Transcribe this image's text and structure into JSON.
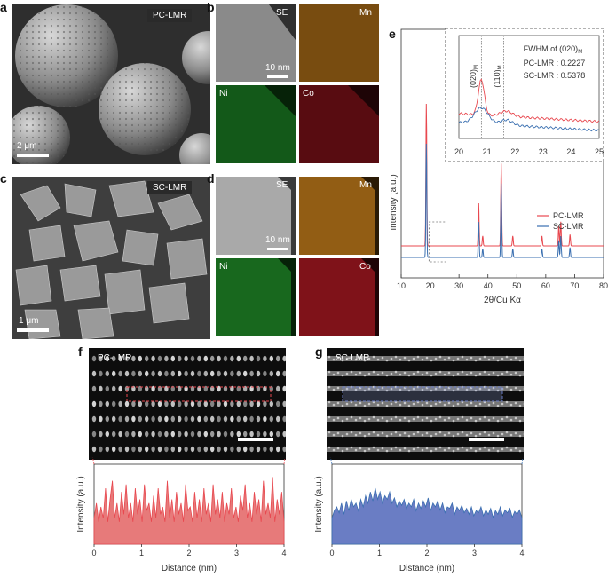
{
  "panels": {
    "a": {
      "letter": "a",
      "tag": "PC-LMR",
      "scale": "2 μm"
    },
    "b": {
      "letter": "b",
      "scale": "10 nm",
      "maps": [
        "SE",
        "Mn",
        "Ni",
        "Co"
      ]
    },
    "c": {
      "letter": "c",
      "tag": "SC-LMR",
      "scale": "1 μm"
    },
    "d": {
      "letter": "d",
      "scale": "10 nm",
      "maps": [
        "SE",
        "Mn",
        "Ni",
        "Co"
      ]
    },
    "e": {
      "letter": "e"
    },
    "f": {
      "letter": "f",
      "tag": "PC-LMR"
    },
    "g": {
      "letter": "g",
      "tag": "SC-LMR"
    }
  },
  "colors": {
    "pc": "#e8484f",
    "sc": "#3a6fb0",
    "pc_fill": "#e77a7a",
    "sc_fill": "#6a7dc4",
    "mn": "#d88a1e",
    "ni": "#2fbf3a",
    "co": "#e0202c"
  },
  "chart_data": [
    {
      "type": "line",
      "panel": "e",
      "xlabel": "2θ/Cu Kα",
      "ylabel": "Intensity (a.u.)",
      "xlim": [
        10,
        80
      ],
      "xticks": [
        10,
        20,
        30,
        40,
        50,
        60,
        70,
        80
      ],
      "series": [
        {
          "name": "PC-LMR",
          "color": "#e8484f",
          "peaks": [
            [
              18.7,
              1.0
            ],
            [
              36.8,
              0.3
            ],
            [
              38.2,
              0.07
            ],
            [
              44.6,
              0.58
            ],
            [
              48.6,
              0.07
            ],
            [
              58.7,
              0.07
            ],
            [
              64.5,
              0.14
            ],
            [
              65.2,
              0.17
            ],
            [
              68.4,
              0.08
            ]
          ]
        },
        {
          "name": "SC-LMR",
          "color": "#3a6fb0",
          "peaks": [
            [
              18.7,
              0.8
            ],
            [
              36.8,
              0.25
            ],
            [
              38.2,
              0.06
            ],
            [
              44.6,
              0.52
            ],
            [
              48.6,
              0.06
            ],
            [
              58.7,
              0.06
            ],
            [
              64.5,
              0.12
            ],
            [
              65.2,
              0.15
            ],
            [
              68.4,
              0.07
            ]
          ]
        }
      ],
      "inset": {
        "xlim": [
          20,
          25
        ],
        "xticks": [
          20,
          21,
          22,
          23,
          24,
          25
        ],
        "labels": [
          "(020)",
          "(110)"
        ],
        "label_subscript": "M",
        "fwhm_title": "FWHM of (020)",
        "fwhm_subscript": "M",
        "fwhm_values": [
          "PC-LMR : 0.2227",
          "SC-LMR : 0.5378"
        ]
      }
    },
    {
      "type": "area",
      "panel": "f",
      "xlabel": "Distance (nm)",
      "ylabel": "Intensity (a.u.)",
      "xlim": [
        0,
        4
      ],
      "xticks": [
        0,
        1,
        2,
        3,
        4
      ],
      "values": [
        0.35,
        0.55,
        0.3,
        0.5,
        0.35,
        0.75,
        0.3,
        0.6,
        0.85,
        0.35,
        0.55,
        0.3,
        0.7,
        0.4,
        0.8,
        0.35,
        0.55,
        0.3,
        0.75,
        0.4,
        0.6,
        0.3,
        0.8,
        0.45,
        0.55,
        0.3,
        0.65,
        0.35,
        0.75,
        0.4,
        0.5,
        0.3,
        0.85,
        0.35,
        0.6,
        0.3,
        0.7,
        0.4,
        0.55,
        0.3,
        0.8,
        0.45,
        0.5,
        0.3,
        0.7,
        0.35,
        0.6,
        0.3,
        0.75,
        0.4,
        0.55,
        0.3,
        0.8,
        0.4,
        0.6,
        0.35,
        0.7,
        0.3,
        0.55,
        0.4,
        0.75,
        0.35,
        0.5,
        0.3,
        0.65,
        0.45,
        0.8,
        0.35,
        0.55,
        0.3,
        0.7,
        0.4,
        0.6,
        0.3,
        0.85,
        0.4,
        0.55,
        0.35,
        0.9,
        0.3,
        0.6,
        0.4,
        0.7,
        0.3
      ]
    },
    {
      "type": "area",
      "panel": "g",
      "xlabel": "Distance (nm)",
      "ylabel": "Intensity (a.u.)",
      "xlim": [
        0,
        4
      ],
      "xticks": [
        0,
        1,
        2,
        3,
        4
      ],
      "values": [
        0.35,
        0.45,
        0.5,
        0.42,
        0.55,
        0.4,
        0.58,
        0.45,
        0.6,
        0.5,
        0.55,
        0.45,
        0.6,
        0.5,
        0.65,
        0.55,
        0.7,
        0.58,
        0.75,
        0.6,
        0.7,
        0.55,
        0.65,
        0.6,
        0.7,
        0.55,
        0.62,
        0.5,
        0.58,
        0.52,
        0.6,
        0.48,
        0.55,
        0.5,
        0.6,
        0.45,
        0.55,
        0.48,
        0.58,
        0.5,
        0.62,
        0.45,
        0.55,
        0.5,
        0.58,
        0.46,
        0.55,
        0.42,
        0.5,
        0.48,
        0.55,
        0.4,
        0.5,
        0.45,
        0.52,
        0.42,
        0.48,
        0.4,
        0.5,
        0.38,
        0.45,
        0.42,
        0.5,
        0.38,
        0.46,
        0.4,
        0.48,
        0.36,
        0.45,
        0.4,
        0.5,
        0.38,
        0.46,
        0.42,
        0.48,
        0.36,
        0.44,
        0.4,
        0.46,
        0.35
      ]
    }
  ]
}
